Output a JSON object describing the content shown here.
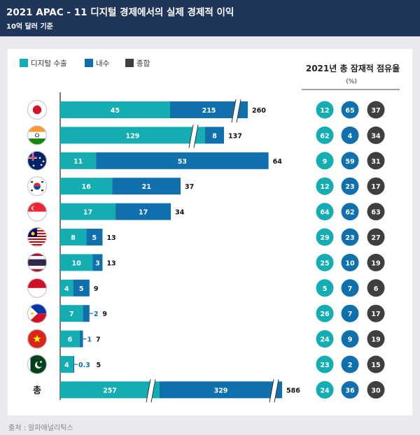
{
  "header": {
    "title": "2021 APAC - 11 디지털 경제에서의 실제 경제적 이익",
    "subtitle": "10억 달러 기준"
  },
  "source": "출처 : 알파애널리틱스",
  "colors": {
    "digital_export": "#14adb1",
    "domestic": "#0f70ad",
    "total": "#3f3f3f",
    "header_bg": "#1f3559"
  },
  "chart_data": {
    "type": "bar",
    "stacked": true,
    "orientation": "horizontal",
    "categories": [
      "japan-flag-icon",
      "india-flag-icon",
      "australia-flag-icon",
      "south-korea-flag-icon",
      "singapore-flag-icon",
      "malaysia-flag-icon",
      "thailand-flag-icon",
      "indonesia-flag-icon",
      "philippines-flag-icon",
      "vietnam-flag-icon",
      "pakistan-flag-icon",
      "총"
    ],
    "series": [
      {
        "name": "디지털 수출",
        "values": [
          45,
          129,
          11,
          16,
          17,
          8,
          10,
          4,
          7,
          6,
          4,
          257
        ]
      },
      {
        "name": "내수",
        "values": [
          215,
          8,
          53,
          21,
          17,
          5,
          3,
          5,
          2,
          1,
          0.3,
          329
        ]
      },
      {
        "name": "종합",
        "values": [
          260,
          137,
          64,
          37,
          34,
          13,
          13,
          9,
          9,
          7,
          5,
          586
        ]
      }
    ],
    "axis_breaks": [
      "japan",
      "india",
      "total"
    ],
    "legend_position": "top-left",
    "share_table": {
      "title": "2021년 총 잠재적 점유율",
      "unit": "(%)",
      "digital_export": [
        12,
        62,
        9,
        12,
        64,
        29,
        25,
        5,
        26,
        24,
        23,
        24
      ],
      "domestic": [
        65,
        4,
        59,
        23,
        62,
        23,
        10,
        7,
        7,
        9,
        2,
        36
      ],
      "total": [
        37,
        34,
        31,
        17,
        63,
        27,
        19,
        6,
        17,
        19,
        15,
        30
      ]
    }
  }
}
